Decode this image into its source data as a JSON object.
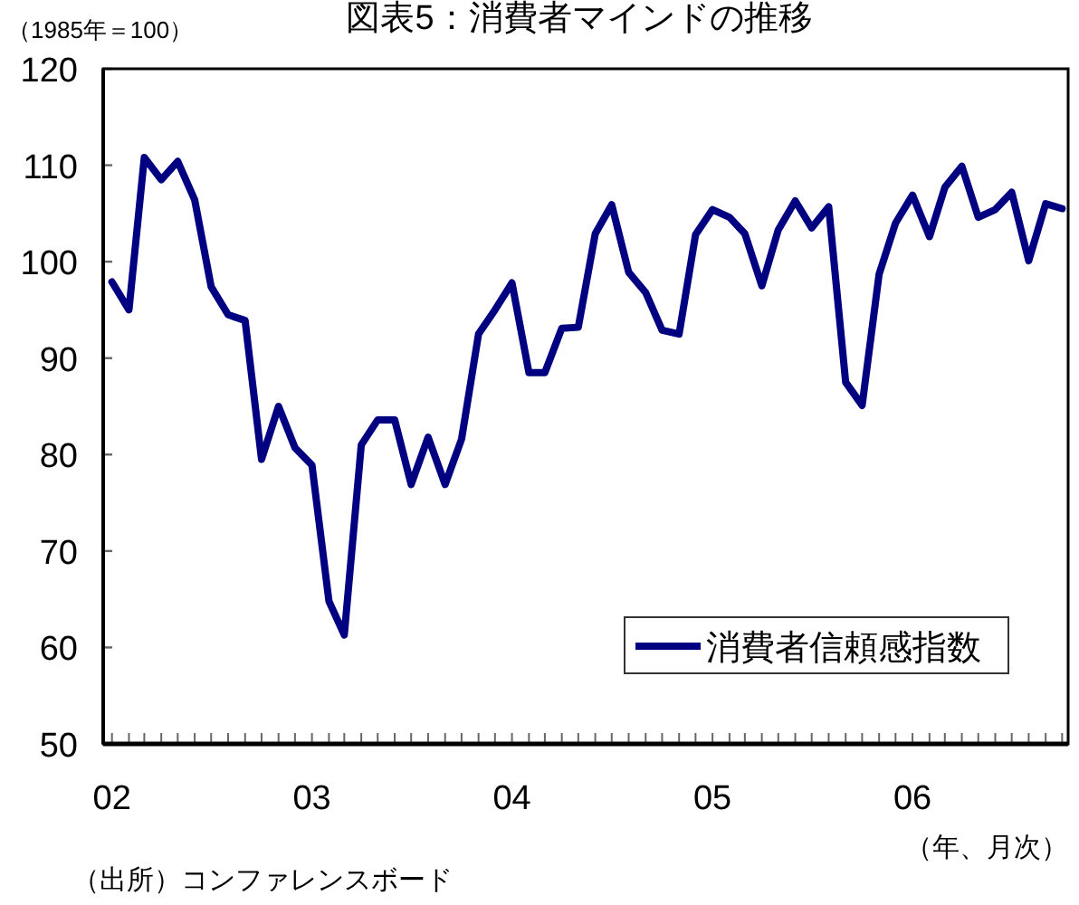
{
  "chart_data": {
    "type": "line",
    "title": "図表5：消費者マインドの推移",
    "ylabel": "（1985年＝100）",
    "xlabel": "（年、月次）",
    "annotations": [
      "（出所）コンファレンスボード"
    ],
    "x": [
      "2002-01",
      "2002-02",
      "2002-03",
      "2002-04",
      "2002-05",
      "2002-06",
      "2002-07",
      "2002-08",
      "2002-09",
      "2002-10",
      "2002-11",
      "2002-12",
      "2003-01",
      "2003-02",
      "2003-03",
      "2003-04",
      "2003-05",
      "2003-06",
      "2003-07",
      "2003-08",
      "2003-09",
      "2003-10",
      "2003-11",
      "2003-12",
      "2004-01",
      "2004-02",
      "2004-03",
      "2004-04",
      "2004-05",
      "2004-06",
      "2004-07",
      "2004-08",
      "2004-09",
      "2004-10",
      "2004-11",
      "2004-12",
      "2005-01",
      "2005-02",
      "2005-03",
      "2005-04",
      "2005-05",
      "2005-06",
      "2005-07",
      "2005-08",
      "2005-09",
      "2005-10",
      "2005-11",
      "2005-12",
      "2006-01",
      "2006-02",
      "2006-03",
      "2006-04",
      "2006-05",
      "2006-06",
      "2006-07",
      "2006-08",
      "2006-09",
      "2006-10"
    ],
    "series": [
      {
        "name": "消費者信頼感指数",
        "color": "#000080",
        "values": [
          97.9,
          95.0,
          110.8,
          108.5,
          110.4,
          106.4,
          97.4,
          94.5,
          93.9,
          79.5,
          85.0,
          80.7,
          78.9,
          64.8,
          61.3,
          81.0,
          83.6,
          83.6,
          76.9,
          81.8,
          76.9,
          81.6,
          92.5,
          95.0,
          97.8,
          88.5,
          88.5,
          93.1,
          93.2,
          102.9,
          105.9,
          98.9,
          96.8,
          92.9,
          92.5,
          102.8,
          105.4,
          104.6,
          102.9,
          97.5,
          103.3,
          106.3,
          103.5,
          105.7,
          87.5,
          85.1,
          98.7,
          104.0,
          106.9,
          102.6,
          107.7,
          109.9,
          104.6,
          105.4,
          107.2,
          100.1,
          106.0,
          105.5
        ]
      }
    ],
    "xlim": [
      "2001-12-16",
      "2006-10-12"
    ],
    "xticks": [
      {
        "value": "2002-01",
        "label": "02"
      },
      {
        "value": "2002-02",
        "label": null
      },
      {
        "value": "2002-03",
        "label": null
      },
      {
        "value": "2002-04",
        "label": null
      },
      {
        "value": "2002-05",
        "label": null
      },
      {
        "value": "2002-06",
        "label": null
      },
      {
        "value": "2002-07",
        "label": null
      },
      {
        "value": "2002-08",
        "label": null
      },
      {
        "value": "2002-09",
        "label": null
      },
      {
        "value": "2002-10",
        "label": null
      },
      {
        "value": "2002-11",
        "label": null
      },
      {
        "value": "2002-12",
        "label": null
      },
      {
        "value": "2003-01",
        "label": "03"
      },
      {
        "value": "2003-02",
        "label": null
      },
      {
        "value": "2003-03",
        "label": null
      },
      {
        "value": "2003-04",
        "label": null
      },
      {
        "value": "2003-05",
        "label": null
      },
      {
        "value": "2003-06",
        "label": null
      },
      {
        "value": "2003-07",
        "label": null
      },
      {
        "value": "2003-08",
        "label": null
      },
      {
        "value": "2003-09",
        "label": null
      },
      {
        "value": "2003-10",
        "label": null
      },
      {
        "value": "2003-11",
        "label": null
      },
      {
        "value": "2003-12",
        "label": null
      },
      {
        "value": "2004-01",
        "label": "04"
      },
      {
        "value": "2004-02",
        "label": null
      },
      {
        "value": "2004-03",
        "label": null
      },
      {
        "value": "2004-04",
        "label": null
      },
      {
        "value": "2004-05",
        "label": null
      },
      {
        "value": "2004-06",
        "label": null
      },
      {
        "value": "2004-07",
        "label": null
      },
      {
        "value": "2004-08",
        "label": null
      },
      {
        "value": "2004-09",
        "label": null
      },
      {
        "value": "2004-10",
        "label": null
      },
      {
        "value": "2004-11",
        "label": null
      },
      {
        "value": "2004-12",
        "label": null
      },
      {
        "value": "2005-01",
        "label": "05"
      },
      {
        "value": "2005-02",
        "label": null
      },
      {
        "value": "2005-03",
        "label": null
      },
      {
        "value": "2005-04",
        "label": null
      },
      {
        "value": "2005-05",
        "label": null
      },
      {
        "value": "2005-06",
        "label": null
      },
      {
        "value": "2005-07",
        "label": null
      },
      {
        "value": "2005-08",
        "label": null
      },
      {
        "value": "2005-09",
        "label": null
      },
      {
        "value": "2005-10",
        "label": null
      },
      {
        "value": "2005-11",
        "label": null
      },
      {
        "value": "2005-12",
        "label": null
      },
      {
        "value": "2006-01",
        "label": "06"
      },
      {
        "value": "2006-02",
        "label": null
      },
      {
        "value": "2006-03",
        "label": null
      },
      {
        "value": "2006-04",
        "label": null
      },
      {
        "value": "2006-05",
        "label": null
      },
      {
        "value": "2006-06",
        "label": null
      },
      {
        "value": "2006-07",
        "label": null
      },
      {
        "value": "2006-08",
        "label": null
      },
      {
        "value": "2006-09",
        "label": null
      },
      {
        "value": "2006-10",
        "label": null
      }
    ],
    "ylim": [
      50,
      120
    ],
    "yticks": [
      50,
      60,
      70,
      80,
      90,
      100,
      110,
      120
    ],
    "grid": false,
    "legend": "bottom right",
    "line_style": "solid",
    "marker": "none"
  }
}
